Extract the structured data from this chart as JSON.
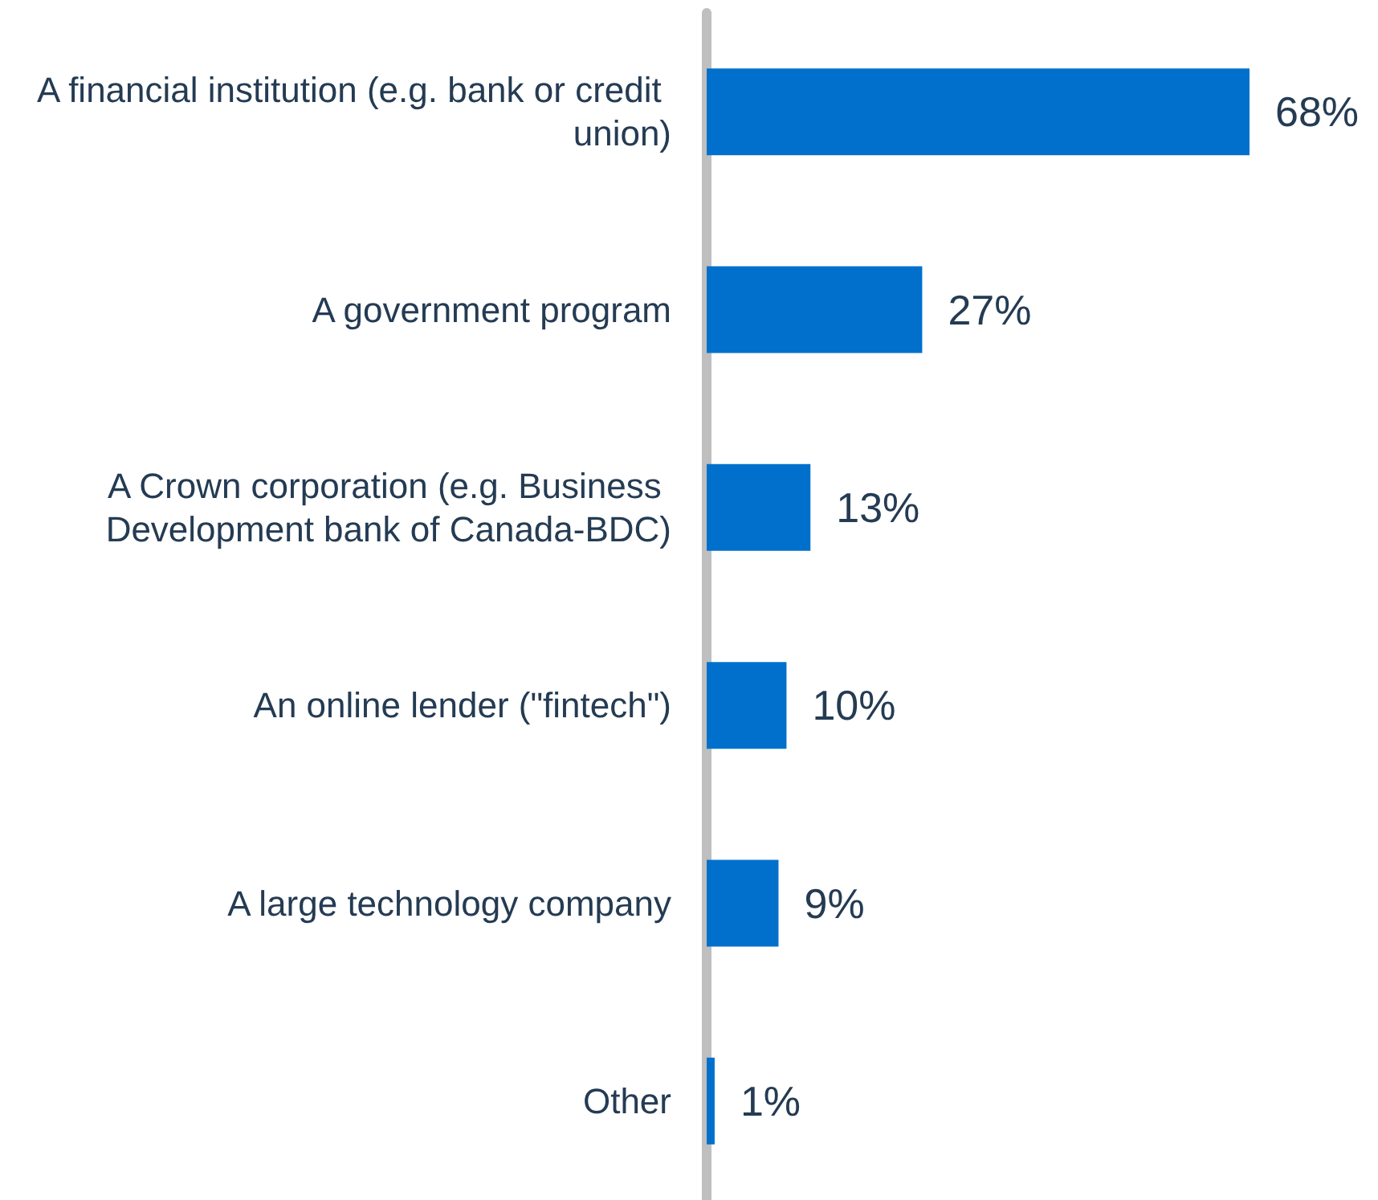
{
  "chart_data": {
    "type": "bar",
    "orientation": "horizontal",
    "categories": [
      "A financial institution (e.g. bank or credit union)",
      "A government program",
      "A Crown corporation (e.g. Business Development bank of Canada-BDC)",
      "An online lender (\"fintech\")",
      "A large technology company",
      "Other"
    ],
    "values": [
      68,
      27,
      13,
      10,
      9,
      1
    ],
    "color": "#0070cc",
    "value_labels": [
      "68%",
      "27%",
      "13%",
      "10%",
      "9%",
      "1%"
    ]
  }
}
